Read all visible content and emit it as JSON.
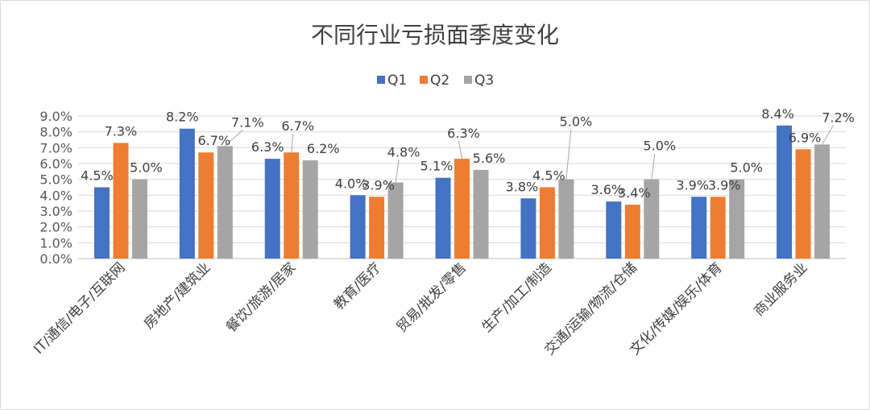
{
  "chart_data": {
    "type": "bar",
    "title": "不同行业亏损面季度变化",
    "categories": [
      "IT/通信/电子/互联网",
      "房地产/建筑业",
      "餐饮/旅游/居家",
      "教育/医疗",
      "贸易/批发/零售",
      "生产/加工/制造",
      "交通/运输/物流/仓储",
      "文化/传媒/娱乐/体育",
      "商业服务业"
    ],
    "series": [
      {
        "name": "Q1",
        "color": "#4472c4",
        "values": [
          4.5,
          8.2,
          6.3,
          4.0,
          5.1,
          3.8,
          3.6,
          3.9,
          8.4
        ],
        "labels": [
          "4.5%",
          "8.2%",
          "6.3%",
          "4.0%",
          "5.1%",
          "3.8%",
          "3.6%",
          "3.9%",
          "8.4%"
        ]
      },
      {
        "name": "Q2",
        "color": "#ed7d31",
        "values": [
          7.3,
          6.7,
          6.7,
          3.9,
          6.3,
          4.5,
          3.4,
          3.9,
          6.9
        ],
        "labels": [
          "7.3%",
          "6.7%",
          "6.7%",
          "3.9%",
          "6.3%",
          "4.5%",
          "3.4%",
          "3.9%",
          "6.9%"
        ]
      },
      {
        "name": "Q3",
        "color": "#a5a5a5",
        "values": [
          5.0,
          7.1,
          6.2,
          4.8,
          5.6,
          5.0,
          5.0,
          5.0,
          7.2
        ],
        "labels": [
          "5.0%",
          "7.1%",
          "6.2%",
          "4.8%",
          "5.6%",
          "5.0%",
          "5.0%",
          "5.0%",
          "7.2%"
        ]
      }
    ],
    "yticks": [
      "0.0%",
      "1.0%",
      "2.0%",
      "3.0%",
      "4.0%",
      "5.0%",
      "6.0%",
      "7.0%",
      "8.0%",
      "9.0%"
    ],
    "ylim": [
      0,
      9
    ],
    "grid": true,
    "legend_position": "top"
  }
}
